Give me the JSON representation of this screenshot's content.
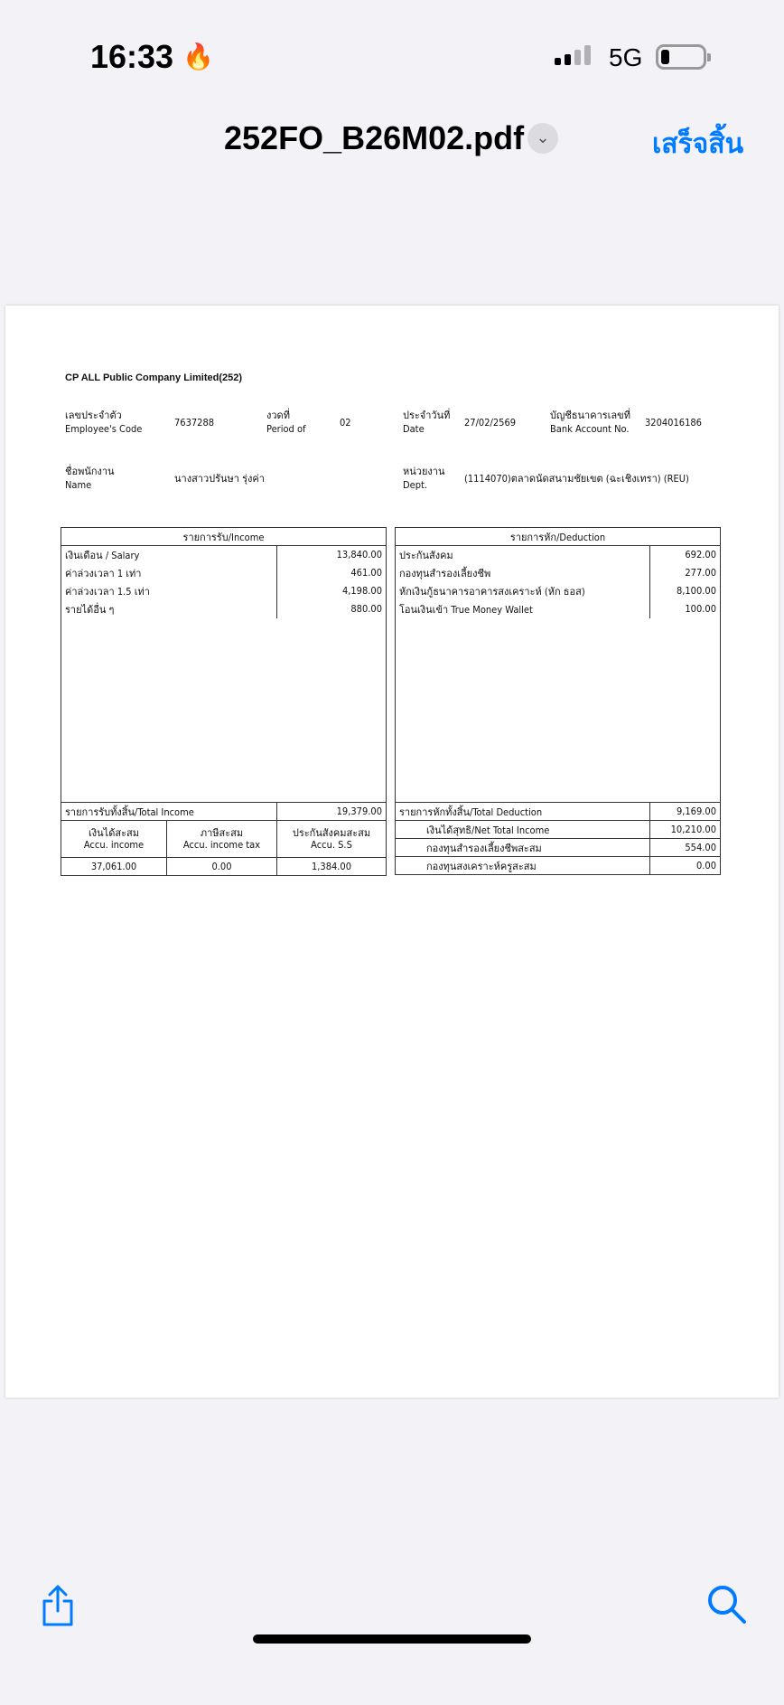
{
  "status": {
    "time": "16:33",
    "network": "5G",
    "battery_level": 0.15
  },
  "header": {
    "title": "252FO_B26M02.pdf",
    "done_label": "เสร็จสิ้น",
    "accent": "#007AFF"
  },
  "doc": {
    "company": "CP ALL Public Company Limited(252)",
    "emp_code_th": "เลขประจำตัว",
    "emp_code_en": "Employee's Code",
    "emp_code": "7637288",
    "period_th": "งวดที่",
    "period_en": "Period of",
    "period": "02",
    "date_th": "ประจำวันที่",
    "date_en": "Date",
    "date": "27/02/2569",
    "bank_th": "บัญชีธนาคารเลขที่",
    "bank_en": "Bank Account No.",
    "bank": "3204016186",
    "name_th": "ชื่อพนักงาน",
    "name_en": "Name",
    "name": "นางสาวปรันษา รุ่งค่า",
    "dept_th": "หน่วยงาน",
    "dept_en": "Dept.",
    "dept": "(1114070)ตลาดนัดสนามชัยเขต (ฉะเชิงเทรา) (REU)",
    "income": {
      "header": "รายการรับ/Income",
      "items": [
        {
          "label": "เงินเดือน / Salary",
          "value": "13,840.00"
        },
        {
          "label": "ค่าล่วงเวลา 1 เท่า",
          "value": "461.00"
        },
        {
          "label": "ค่าล่วงเวลา 1.5 เท่า",
          "value": "4,198.00"
        },
        {
          "label": "รายได้อื่น ๆ",
          "value": "880.00"
        }
      ],
      "total_label": "รายการรับทั้งสิ้น/Total Income",
      "total": "19,379.00",
      "accu": [
        {
          "th": "เงินได้สะสม",
          "en": "Accu. income",
          "value": "37,061.00"
        },
        {
          "th": "ภาษีสะสม",
          "en": "Accu. income tax",
          "value": "0.00"
        },
        {
          "th": "ประกันสังคมสะสม",
          "en": "Accu. S.S",
          "value": "1,384.00"
        }
      ]
    },
    "deduction": {
      "header": "รายการหัก/Deduction",
      "items": [
        {
          "label": "ประกันสังคม",
          "value": "692.00"
        },
        {
          "label": "กองทุนสำรองเลี้ยงชีพ",
          "value": "277.00"
        },
        {
          "label": "หักเงินกู้ธนาคารอาคารสงเคราะห์ (หัก ธอส)",
          "value": "8,100.00"
        },
        {
          "label": "โอนเงินเข้า True Money Wallet",
          "value": "100.00"
        }
      ],
      "total_label": "รายการหักทั้งสิ้น/Total Deduction",
      "total": "9,169.00",
      "summary": [
        {
          "label": "เงินได้สุทธิ/Net Total Income",
          "value": "10,210.00"
        },
        {
          "label": "กองทุนสำรองเลี้ยงชีพสะสม",
          "value": "554.00"
        },
        {
          "label": "กองทุนสงเคราะห์ครูสะสม",
          "value": "0.00"
        }
      ]
    }
  },
  "toolbar": {
    "share_icon": "share-icon",
    "search_icon": "search-icon"
  }
}
